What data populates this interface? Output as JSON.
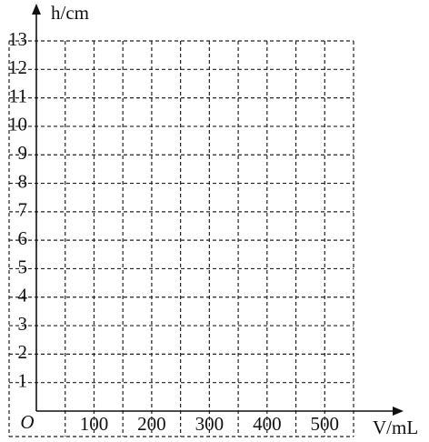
{
  "chart_data": {
    "type": "scatter",
    "xlabel": "V/mL",
    "ylabel": "h/cm",
    "origin_label": "O",
    "xlim": [
      0,
      550
    ],
    "ylim": [
      0,
      13
    ],
    "xticks": [
      100,
      200,
      300,
      400,
      500
    ],
    "yticks": [
      1,
      2,
      3,
      4,
      5,
      6,
      7,
      8,
      9,
      10,
      11,
      12,
      13
    ],
    "x_grid": [
      50,
      100,
      150,
      200,
      250,
      300,
      350,
      400,
      450,
      500,
      550
    ],
    "grid": true,
    "x": [],
    "values": []
  }
}
